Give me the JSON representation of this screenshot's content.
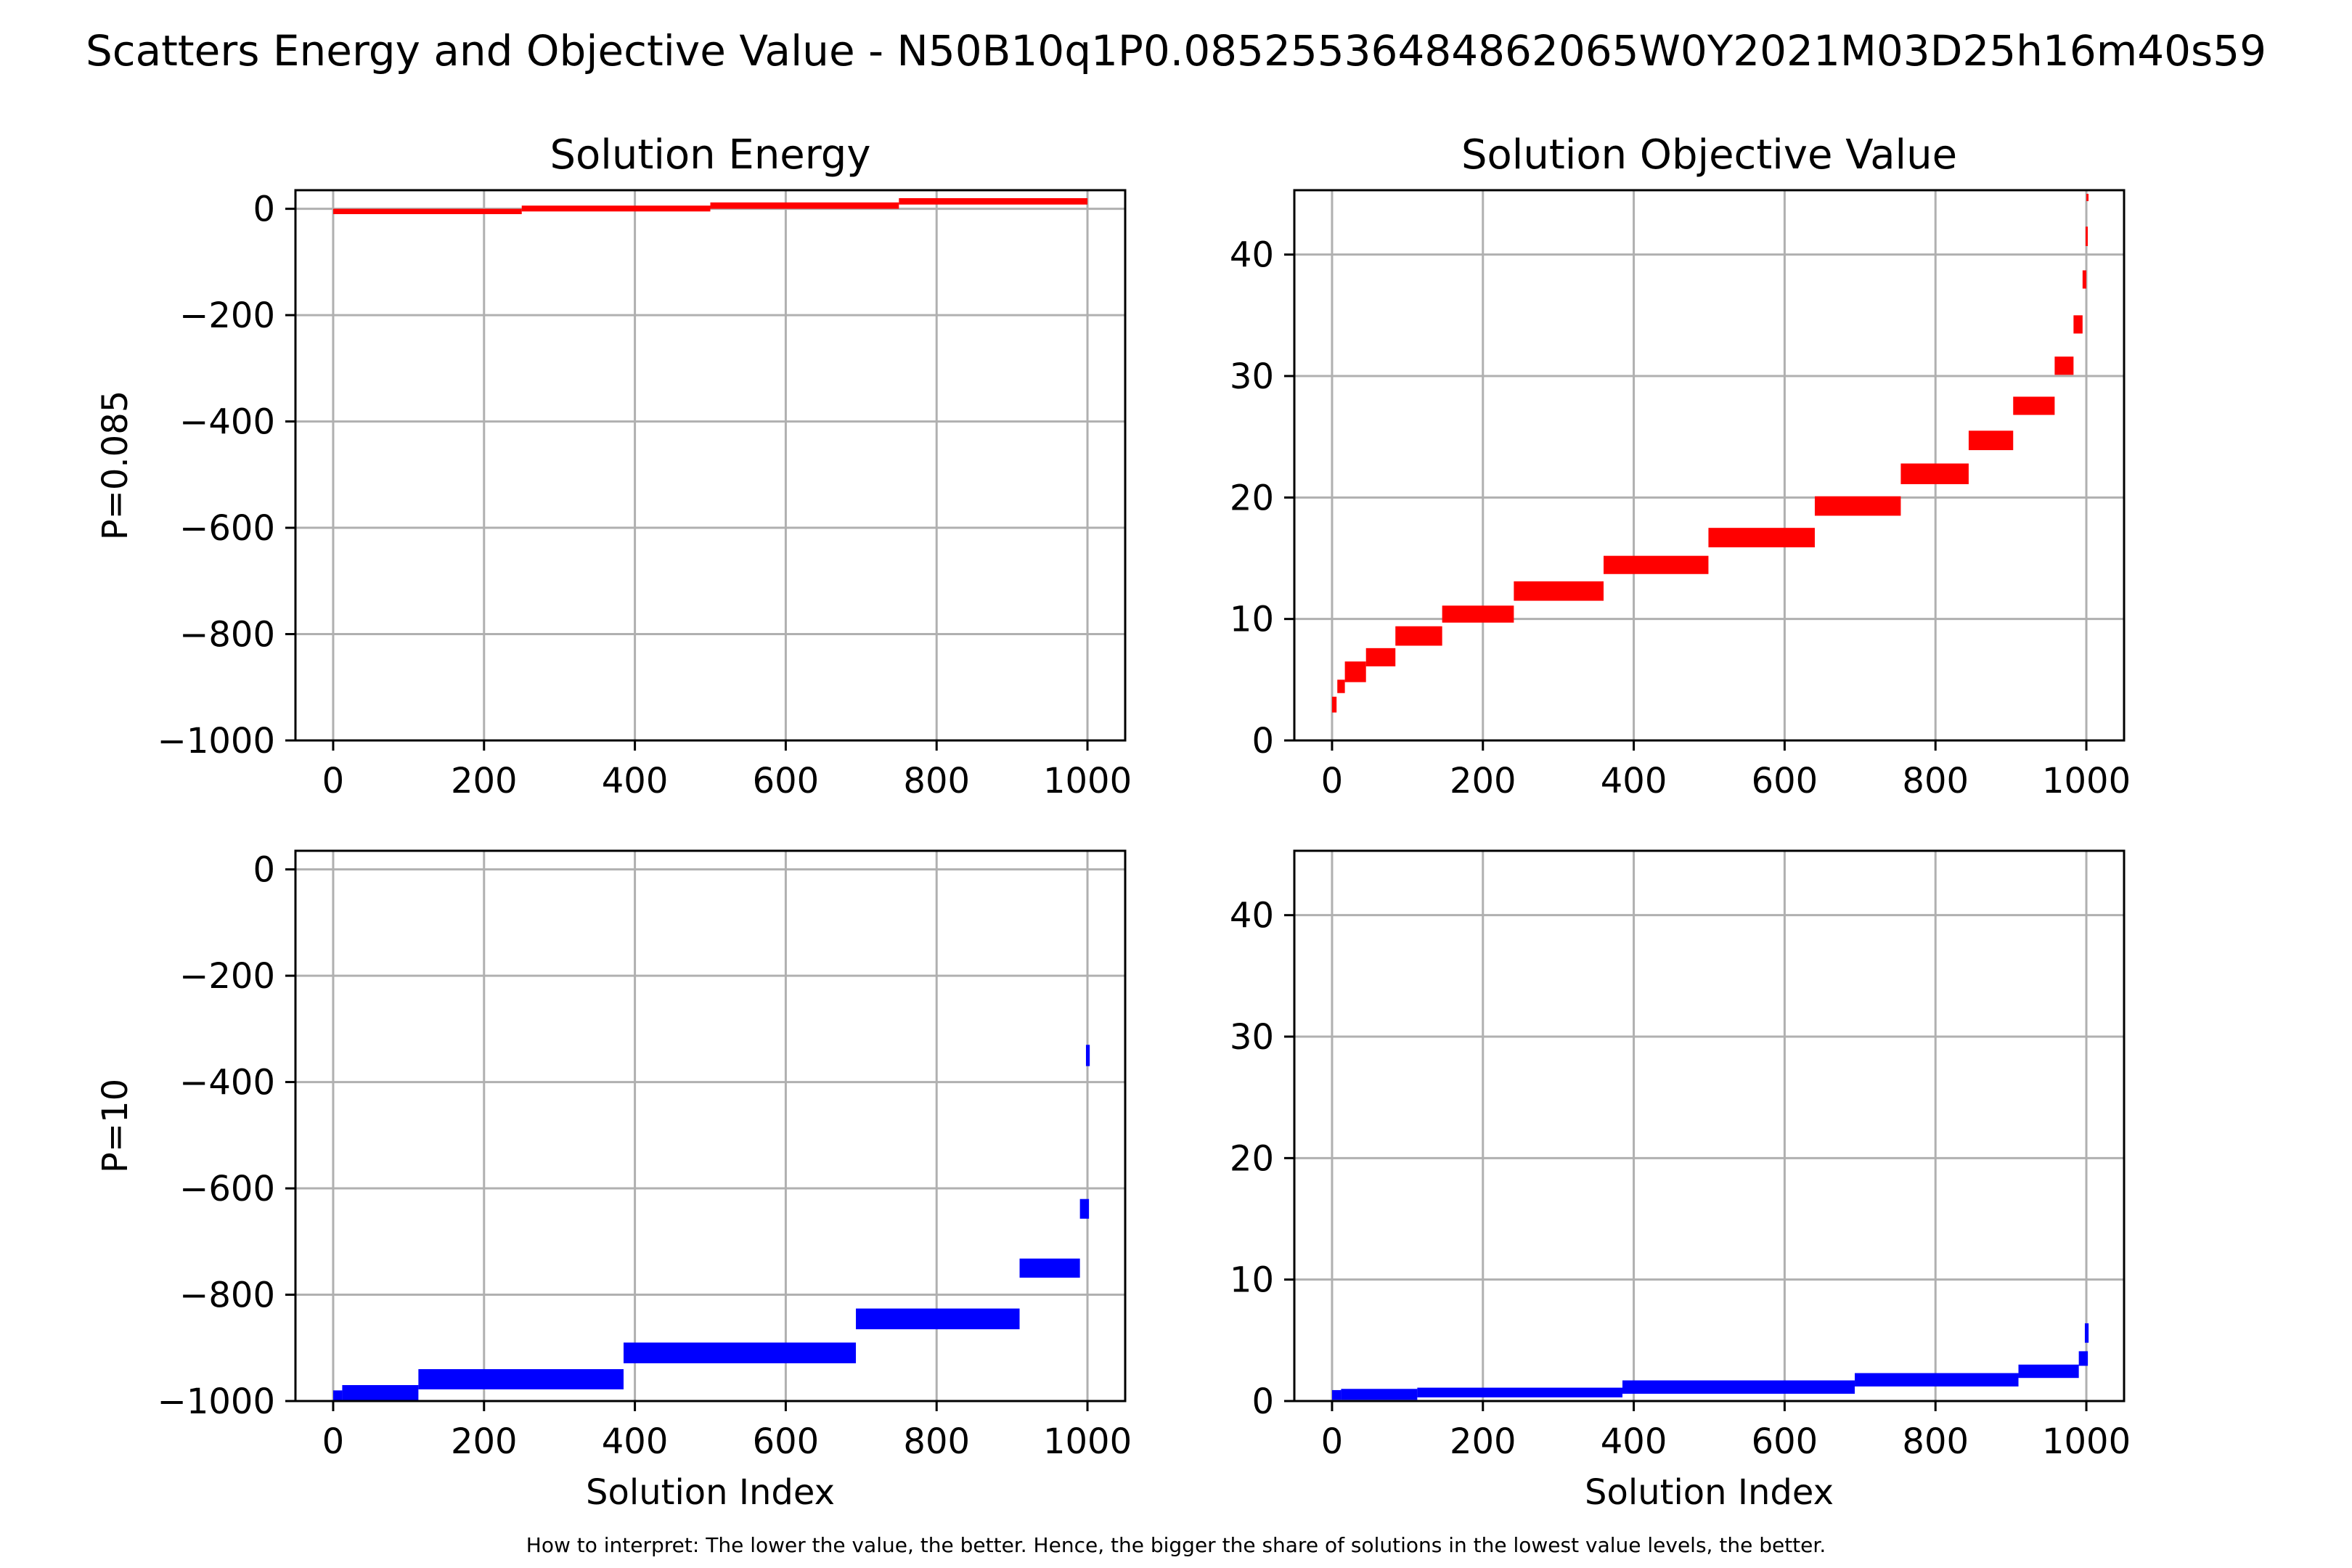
{
  "figure": {
    "title": "Scatters Energy and Objective Value - N50B10q1P0.0852553648486206​5W0Y2021M03D25h16m40s59",
    "footnote": "How to interpret: The lower the value, the better. Hence, the bigger the share of solutions in the lowest value levels, the better."
  },
  "colors": {
    "p_low": "#ff0000",
    "p_high": "#0000ff",
    "grid": "#b0b0b0",
    "axis": "#000000"
  },
  "chart_data": [
    {
      "type": "scatter",
      "title": "Solution Energy",
      "ylabel": "P=0.085",
      "xlabel": "",
      "xlim": [
        -50,
        1050
      ],
      "ylim": [
        -1000,
        35
      ],
      "xticks": [
        0,
        200,
        400,
        600,
        800,
        1000
      ],
      "yticks": [
        0,
        -200,
        -400,
        -600,
        -800,
        -1000
      ],
      "grid": true,
      "series": [
        {
          "color": "#ff0000",
          "levels": [
            {
              "x0": 0,
              "x1": 250,
              "y0": -10,
              "y1": 0
            },
            {
              "x0": 250,
              "x1": 500,
              "y0": -5,
              "y1": 6
            },
            {
              "x0": 500,
              "x1": 750,
              "y0": 0,
              "y1": 12
            },
            {
              "x0": 750,
              "x1": 1000,
              "y0": 8,
              "y1": 20
            }
          ]
        }
      ]
    },
    {
      "type": "scatter",
      "title": "Solution Objective Value",
      "ylabel": "",
      "xlabel": "",
      "xlim": [
        -50,
        1050
      ],
      "ylim": [
        0,
        45.3
      ],
      "xticks": [
        0,
        200,
        400,
        600,
        800,
        1000
      ],
      "yticks": [
        0,
        10,
        20,
        30,
        40
      ],
      "grid": true,
      "series": [
        {
          "color": "#ff0000",
          "levels": [
            {
              "x0": 0,
              "x1": 6,
              "y0": 2.3,
              "y1": 3.6
            },
            {
              "x0": 7,
              "x1": 17,
              "y0": 3.9,
              "y1": 5.0
            },
            {
              "x0": 17,
              "x1": 45,
              "y0": 4.8,
              "y1": 6.5
            },
            {
              "x0": 45,
              "x1": 84,
              "y0": 6.1,
              "y1": 7.6
            },
            {
              "x0": 84,
              "x1": 146,
              "y0": 7.8,
              "y1": 9.4
            },
            {
              "x0": 146,
              "x1": 241,
              "y0": 9.7,
              "y1": 11.1
            },
            {
              "x0": 241,
              "x1": 360,
              "y0": 11.5,
              "y1": 13.1
            },
            {
              "x0": 360,
              "x1": 499,
              "y0": 13.7,
              "y1": 15.2
            },
            {
              "x0": 499,
              "x1": 640,
              "y0": 15.9,
              "y1": 17.5
            },
            {
              "x0": 640,
              "x1": 754,
              "y0": 18.5,
              "y1": 20.1
            },
            {
              "x0": 754,
              "x1": 844,
              "y0": 21.1,
              "y1": 22.8
            },
            {
              "x0": 844,
              "x1": 903,
              "y0": 23.9,
              "y1": 25.5
            },
            {
              "x0": 903,
              "x1": 958,
              "y0": 26.8,
              "y1": 28.3
            },
            {
              "x0": 958,
              "x1": 983,
              "y0": 30.1,
              "y1": 31.6
            },
            {
              "x0": 983,
              "x1": 995,
              "y0": 33.5,
              "y1": 35.0
            },
            {
              "x0": 995,
              "x1": 1000,
              "y0": 37.2,
              "y1": 38.7
            },
            {
              "x0": 999,
              "x1": 1001,
              "y0": 40.7,
              "y1": 42.3
            },
            {
              "x0": 1000,
              "x1": 1001,
              "y0": 44.4,
              "y1": 45.0
            }
          ]
        }
      ]
    },
    {
      "type": "scatter",
      "title": "",
      "ylabel": "P=10",
      "xlabel": "Solution Index",
      "xlim": [
        -50,
        1050
      ],
      "ylim": [
        -1000,
        35
      ],
      "xticks": [
        0,
        200,
        400,
        600,
        800,
        1000
      ],
      "yticks": [
        0,
        -200,
        -400,
        -600,
        -800,
        -1000
      ],
      "grid": true,
      "series": [
        {
          "color": "#0000ff",
          "levels": [
            {
              "x0": 0,
              "x1": 12,
              "y0": -1000,
              "y1": -980
            },
            {
              "x0": 12,
              "x1": 113,
              "y0": -1000,
              "y1": -970
            },
            {
              "x0": 113,
              "x1": 385,
              "y0": -978,
              "y1": -940
            },
            {
              "x0": 385,
              "x1": 693,
              "y0": -929,
              "y1": -890
            },
            {
              "x0": 693,
              "x1": 910,
              "y0": -865,
              "y1": -826
            },
            {
              "x0": 910,
              "x1": 990,
              "y0": -768,
              "y1": -732
            },
            {
              "x0": 990,
              "x1": 1002,
              "y0": -657,
              "y1": -620
            },
            {
              "x0": 998,
              "x1": 1003,
              "y0": -370,
              "y1": -330
            }
          ]
        }
      ]
    },
    {
      "type": "scatter",
      "title": "",
      "ylabel": "",
      "xlabel": "Solution Index",
      "xlim": [
        -50,
        1050
      ],
      "ylim": [
        0,
        45.3
      ],
      "xticks": [
        0,
        200,
        400,
        600,
        800,
        1000
      ],
      "yticks": [
        0,
        10,
        20,
        30,
        40
      ],
      "grid": true,
      "series": [
        {
          "color": "#0000ff",
          "levels": [
            {
              "x0": 0,
              "x1": 12,
              "y0": 0.1,
              "y1": 0.9
            },
            {
              "x0": 12,
              "x1": 113,
              "y0": 0.1,
              "y1": 1.0
            },
            {
              "x0": 113,
              "x1": 385,
              "y0": 0.3,
              "y1": 1.1
            },
            {
              "x0": 385,
              "x1": 693,
              "y0": 0.6,
              "y1": 1.7
            },
            {
              "x0": 693,
              "x1": 910,
              "y0": 1.2,
              "y1": 2.3
            },
            {
              "x0": 910,
              "x1": 990,
              "y0": 1.9,
              "y1": 3.0
            },
            {
              "x0": 990,
              "x1": 1002,
              "y0": 2.9,
              "y1": 4.1
            },
            {
              "x0": 998,
              "x1": 1003,
              "y0": 4.8,
              "y1": 6.4
            }
          ]
        }
      ]
    }
  ]
}
